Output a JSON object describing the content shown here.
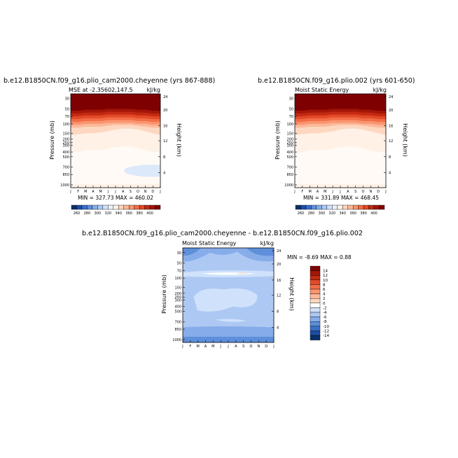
{
  "chart_data": [
    {
      "type": "heatmap",
      "title": "b.e12.B1850CN.f09_g16.plio_cam2000.cheyenne (yrs 867-888)",
      "subtitle_left": "MSE at -2.35602,147.5",
      "subtitle_right": "kJ/kg",
      "ylabel": "Pressure (mb)",
      "ylabel_right": "Height (km)",
      "x_ticks": [
        "J",
        "F",
        "M",
        "A",
        "M",
        "J",
        "J",
        "A",
        "S",
        "O",
        "N",
        "D",
        "J"
      ],
      "y_ticks": [
        "30",
        "50",
        "70",
        "100",
        "150",
        "200",
        "250",
        "300",
        "400",
        "500",
        "700",
        "850",
        "1000"
      ],
      "y_ticks_right": [
        "24",
        "20",
        "16",
        "12",
        "8",
        "4"
      ],
      "stats": "MIN = 327.73  MAX = 460.02",
      "colorbar_labels": [
        "260",
        "280",
        "300",
        "320",
        "340",
        "360",
        "380",
        "400"
      ],
      "levels": [
        260,
        270,
        280,
        290,
        300,
        310,
        320,
        330,
        340,
        350,
        360,
        370,
        380,
        390,
        400,
        410
      ],
      "colors": [
        "#08306b",
        "#1c4fa5",
        "#3a6fc8",
        "#5d8fdb",
        "#86acea",
        "#adc8f3",
        "#d0e2fb",
        "#eaf2fd",
        "#fff1e6",
        "#fdd7c0",
        "#fcb898",
        "#fa9570",
        "#f26d48",
        "#e24a28",
        "#c42a12",
        "#a31608",
        "#7f0000"
      ]
    },
    {
      "type": "heatmap",
      "title": "b.e12.B1850CN.f09_g16.plio.002 (yrs 601-650)",
      "subtitle_left": "Moist Static Energy",
      "subtitle_right": "kJ/kg",
      "ylabel": "Pressure (mb)",
      "ylabel_right": "Height (km)",
      "x_ticks": [
        "J",
        "F",
        "M",
        "A",
        "M",
        "J",
        "J",
        "A",
        "S",
        "O",
        "N",
        "D",
        "J"
      ],
      "y_ticks": [
        "30",
        "50",
        "70",
        "100",
        "150",
        "200",
        "250",
        "300",
        "400",
        "500",
        "700",
        "850",
        "1000"
      ],
      "y_ticks_right": [
        "24",
        "20",
        "16",
        "12",
        "8",
        "4"
      ],
      "stats": "MIN = 331.89  MAX = 468.45",
      "colorbar_labels": [
        "260",
        "280",
        "300",
        "320",
        "340",
        "360",
        "380",
        "400"
      ]
    },
    {
      "type": "heatmap",
      "title": "b.e12.B1850CN.f09_g16.plio_cam2000.cheyenne - b.e12.B1850CN.f09_g16.plio.002",
      "subtitle_left": "Moist Static Energy",
      "subtitle_right": "kJ/kg",
      "ylabel": "Pressure (mb)",
      "ylabel_right": "Height (km)",
      "x_ticks": [
        "J",
        "F",
        "M",
        "A",
        "M",
        "J",
        "J",
        "A",
        "S",
        "O",
        "N",
        "D",
        "J"
      ],
      "y_ticks": [
        "30",
        "50",
        "70",
        "100",
        "150",
        "200",
        "250",
        "300",
        "400",
        "500",
        "700",
        "850",
        "1000"
      ],
      "y_ticks_right": [
        "24",
        "20",
        "16",
        "12",
        "8",
        "4"
      ],
      "stats": "MIN =   -8.69  MAX =    0.88",
      "colorbar_labels": [
        "14",
        "12",
        "10",
        "8",
        "6",
        "4",
        "2",
        "0",
        "-2",
        "-4",
        "-6",
        "-8",
        "-10",
        "-12",
        "-14"
      ],
      "colors": [
        "#7f0000",
        "#a31608",
        "#c42a12",
        "#e24a28",
        "#f26d48",
        "#fa9570",
        "#fcb898",
        "#fdd7c0",
        "#ffffff",
        "#d0e2fb",
        "#adc8f3",
        "#86acea",
        "#5d8fdb",
        "#3a6fc8",
        "#1c4fa5",
        "#08306b"
      ]
    }
  ]
}
